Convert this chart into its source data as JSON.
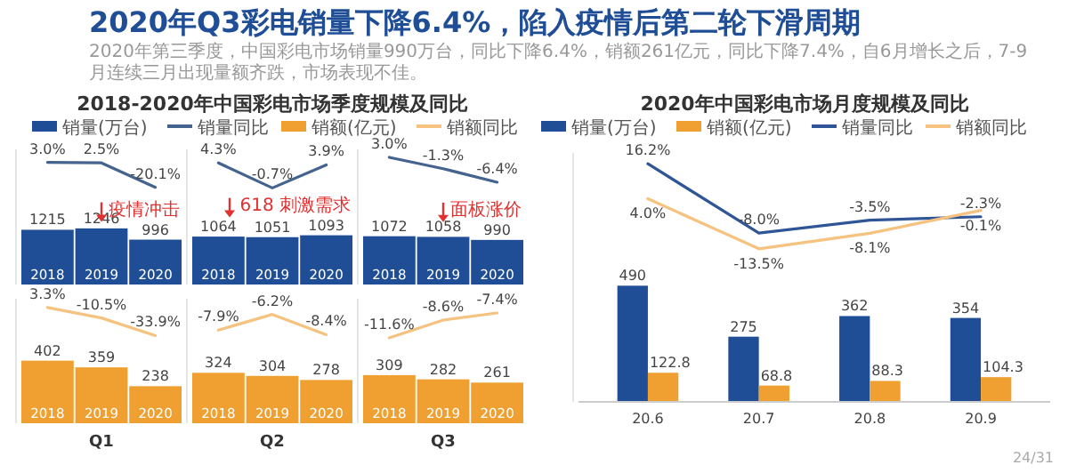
{
  "chart_data": [
    {
      "type": "other",
      "title": "2020年Q3彩电销量下降6.4%，陷入疫情后第二轮下滑周期",
      "subtitle": "2020年第三季度，中国彩电市场销量990万台，同比下降6.4%，销额261亿元，同比下降7.4%，自6月增长之后，7-9月连续三月出现量额齐跌，市场表现不佳。",
      "annotations": [
        "24/31"
      ]
    },
    {
      "type": "bar",
      "title": "2018-2020年中国彩电市场季度规模及同比",
      "categories": [
        "2018",
        "2019",
        "2020"
      ],
      "legend": "top",
      "annotations": [
        "疫情冲击"
      ],
      "ylim": [
        0,
        3000
      ],
      "y2lim": [
        -110,
        15
      ],
      "series": [
        {
          "name": "销量(万台)",
          "color": "#1f4e96",
          "values": [
            1215,
            1246,
            996
          ],
          "value_labels": [
            "1215",
            "1246",
            "996"
          ]
        },
        {
          "type": "line",
          "name": "销量同比",
          "axis": "y2",
          "color": "#44638f",
          "values": [
            3.0,
            2.5,
            -20.1
          ],
          "value_labels": [
            "3.0%",
            "2.5%",
            "-20.1%"
          ]
        }
      ]
    },
    {
      "type": "bar",
      "categories": [
        "2018",
        "2019",
        "2020"
      ],
      "annotations": [
        "618 刺激需求"
      ],
      "ylim": [
        0,
        3000
      ],
      "y2lim": [
        -20,
        7
      ],
      "series": [
        {
          "color": "#1f4e96",
          "values": [
            1064,
            1051,
            1093
          ],
          "value_labels": [
            "1064",
            "1051",
            "1093"
          ]
        },
        {
          "type": "line",
          "axis": "y2",
          "color": "#44638f",
          "values": [
            4.3,
            -0.7,
            3.9
          ],
          "value_labels": [
            "4.3%",
            "-0.7%",
            "3.9%"
          ]
        }
      ]
    },
    {
      "type": "bar",
      "categories": [
        "2018",
        "2019",
        "2020"
      ],
      "annotations": [
        "面板涨价"
      ],
      "ylim": [
        0,
        3000
      ],
      "y2lim": [
        -45,
        6
      ],
      "series": [
        {
          "color": "#1f4e96",
          "values": [
            1072,
            1058,
            990
          ],
          "value_labels": [
            "1072",
            "1058",
            "990"
          ]
        },
        {
          "type": "line",
          "axis": "y2",
          "color": "#44638f",
          "values": [
            3.0,
            -1.3,
            -6.4
          ],
          "value_labels": [
            "3.0%",
            "-1.3%",
            "-6.4%"
          ]
        }
      ]
    },
    {
      "type": "bar",
      "categories": [
        "2018",
        "2019",
        "2020"
      ],
      "xlabel": "Q1",
      "legend": "top",
      "ylim": [
        0,
        800
      ],
      "y2lim": [
        -150,
        15
      ],
      "series": [
        {
          "name": "销额(亿元)",
          "color": "#f0a030",
          "values": [
            402,
            359,
            238
          ],
          "value_labels": [
            "402",
            "359",
            "238"
          ]
        },
        {
          "type": "line",
          "name": "销额同比",
          "axis": "y2",
          "color": "#f5c27f",
          "values": [
            3.3,
            -10.5,
            -33.9
          ],
          "value_labels": [
            "3.3%",
            "-10.5%",
            "-33.9%"
          ]
        }
      ]
    },
    {
      "type": "bar",
      "categories": [
        "2018",
        "2019",
        "2020"
      ],
      "xlabel": "Q2",
      "ylim": [
        0,
        800
      ],
      "y2lim": [
        -18,
        -4.5
      ],
      "series": [
        {
          "color": "#f0a030",
          "values": [
            324,
            304,
            278
          ],
          "value_labels": [
            "324",
            "304",
            "278"
          ]
        },
        {
          "type": "line",
          "axis": "y2",
          "color": "#f5c27f",
          "values": [
            -7.9,
            -6.2,
            -8.4
          ],
          "value_labels": [
            "-7.9%",
            "-6.2%",
            "-8.4%"
          ]
        }
      ]
    },
    {
      "type": "bar",
      "categories": [
        "2018",
        "2019",
        "2020"
      ],
      "xlabel": "Q3",
      "ylim": [
        0,
        800
      ],
      "y2lim": [
        -26,
        -5
      ],
      "series": [
        {
          "color": "#f0a030",
          "values": [
            309,
            282,
            261
          ],
          "value_labels": [
            "309",
            "282",
            "261"
          ]
        },
        {
          "type": "line",
          "axis": "y2",
          "color": "#f5c27f",
          "values": [
            -11.6,
            -8.6,
            -7.4
          ],
          "value_labels": [
            "-11.6%",
            "-8.6%",
            "-7.4%"
          ]
        }
      ]
    },
    {
      "type": "bar",
      "title": "2020年中国彩电市场月度规模及同比",
      "categories": [
        "20.6",
        "20.7",
        "20.8",
        "20.9"
      ],
      "legend": "top",
      "ylim": [
        0,
        1050
      ],
      "y2lim": [
        -67,
        20
      ],
      "series": [
        {
          "name": "销量(万台)",
          "color": "#1f4e96",
          "values": [
            490,
            275,
            362,
            354
          ],
          "value_labels": [
            "490",
            "275",
            "362",
            "354"
          ]
        },
        {
          "name": "销额(亿元)",
          "color": "#f0a030",
          "values": [
            122.8,
            68.8,
            88.3,
            104.3
          ],
          "value_labels": [
            "122.8",
            "68.8",
            "88.3",
            "104.3"
          ]
        },
        {
          "type": "line",
          "name": "销量同比",
          "axis": "y2",
          "color": "#2f5597",
          "values": [
            16.2,
            -8.0,
            -3.5,
            -2.3
          ],
          "value_labels": [
            "16.2%",
            "-8.0%",
            "-3.5%",
            "-2.3%"
          ]
        },
        {
          "type": "line",
          "name": "销额同比",
          "axis": "y2",
          "color": "#f5c27f",
          "values": [
            4.0,
            -13.5,
            -8.1,
            -0.1
          ],
          "value_labels": [
            "4.0%",
            "-13.5%",
            "-8.1%",
            "-0.1%"
          ]
        }
      ]
    }
  ]
}
